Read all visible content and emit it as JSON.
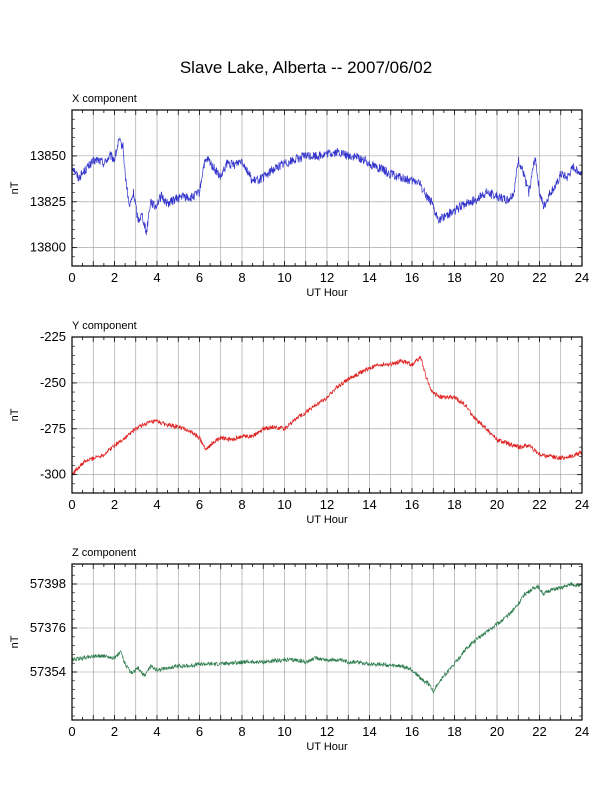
{
  "page": {
    "title": "Slave Lake, Alberta -- 2007/06/02"
  },
  "chart_data": [
    {
      "type": "line",
      "title": "X component",
      "xlabel": "UT Hour",
      "ylabel": "nT",
      "xlim": [
        0,
        24
      ],
      "ylim": [
        13790,
        13875
      ],
      "xticks": [
        0,
        2,
        4,
        6,
        8,
        10,
        12,
        14,
        16,
        18,
        20,
        22,
        24
      ],
      "xtick_labels": [
        "0",
        "2",
        "4",
        "6",
        "8",
        "10",
        "12",
        "14",
        "16",
        "18",
        "20",
        "22",
        "24"
      ],
      "yticks": [
        13800,
        13825,
        13850
      ],
      "ytick_labels": [
        "13800",
        "13825",
        "13850"
      ],
      "grid": true,
      "color": "#3333cc",
      "noise": 2.5,
      "series": [
        {
          "x": [
            0,
            0.3,
            0.6,
            0.9,
            1.2,
            1.5,
            1.8,
            2.0,
            2.2,
            2.4,
            2.5,
            2.7,
            2.9,
            3.1,
            3.3,
            3.5,
            3.7,
            3.9,
            4.2,
            4.5,
            4.8,
            5.2,
            5.6,
            6.0,
            6.2,
            6.4,
            6.7,
            7.0,
            7.3,
            7.6,
            8.0,
            8.5,
            9.0,
            9.5,
            10.0,
            10.5,
            11.0,
            11.5,
            12.0,
            12.5,
            13.0,
            13.5,
            14.0,
            14.5,
            15.0,
            15.5,
            16.0,
            16.3,
            16.6,
            16.9,
            17.1,
            17.3,
            17.6,
            18.0,
            18.5,
            19.0,
            19.5,
            20.0,
            20.5,
            20.8,
            21.0,
            21.2,
            21.5,
            21.8,
            22.0,
            22.2,
            22.5,
            22.8,
            23.0,
            23.3,
            23.6,
            24.0
          ],
          "y": [
            13845,
            13838,
            13842,
            13846,
            13848,
            13846,
            13850,
            13848,
            13858,
            13855,
            13840,
            13822,
            13830,
            13815,
            13818,
            13808,
            13826,
            13822,
            13828,
            13824,
            13826,
            13828,
            13827,
            13830,
            13845,
            13848,
            13843,
            13838,
            13846,
            13845,
            13848,
            13836,
            13838,
            13843,
            13846,
            13848,
            13850,
            13850,
            13851,
            13852,
            13850,
            13849,
            13846,
            13843,
            13840,
            13838,
            13836,
            13836,
            13830,
            13825,
            13818,
            13815,
            13818,
            13820,
            13824,
            13826,
            13830,
            13828,
            13826,
            13830,
            13848,
            13842,
            13830,
            13850,
            13830,
            13822,
            13830,
            13834,
            13840,
            13838,
            13844,
            13840
          ]
        }
      ]
    },
    {
      "type": "line",
      "title": "Y component",
      "xlabel": "UT Hour",
      "ylabel": "nT",
      "xlim": [
        0,
        24
      ],
      "ylim": [
        -310,
        -225
      ],
      "xticks": [
        0,
        2,
        4,
        6,
        8,
        10,
        12,
        14,
        16,
        18,
        20,
        22,
        24
      ],
      "xtick_labels": [
        "0",
        "2",
        "4",
        "6",
        "8",
        "10",
        "12",
        "14",
        "16",
        "18",
        "20",
        "22",
        "24"
      ],
      "yticks": [
        -300,
        -275,
        -250,
        -225
      ],
      "ytick_labels": [
        "-300",
        "-275",
        "-250",
        "-225"
      ],
      "grid": true,
      "color": "#e02020",
      "noise": 1.2,
      "series": [
        {
          "x": [
            0,
            0.3,
            0.6,
            1.0,
            1.5,
            2.0,
            2.5,
            3.0,
            3.5,
            4.0,
            4.5,
            5.0,
            5.5,
            6.0,
            6.3,
            6.6,
            7.0,
            7.5,
            8.0,
            8.5,
            9.0,
            9.5,
            10.0,
            10.5,
            11.0,
            11.5,
            12.0,
            12.5,
            13.0,
            13.5,
            14.0,
            14.5,
            15.0,
            15.5,
            16.0,
            16.4,
            16.7,
            17.0,
            17.5,
            18.0,
            18.5,
            19.0,
            19.5,
            20.0,
            20.5,
            21.0,
            21.5,
            22.0,
            22.5,
            23.0,
            23.5,
            24.0
          ],
          "y": [
            -300,
            -296,
            -293,
            -291,
            -289,
            -284,
            -280,
            -275,
            -272,
            -271,
            -273,
            -274,
            -276,
            -280,
            -286,
            -283,
            -280,
            -281,
            -279,
            -279,
            -275,
            -274,
            -275,
            -270,
            -266,
            -262,
            -258,
            -252,
            -248,
            -245,
            -242,
            -240,
            -240,
            -238,
            -240,
            -236,
            -248,
            -256,
            -258,
            -258,
            -262,
            -270,
            -275,
            -281,
            -283,
            -285,
            -284,
            -289,
            -290,
            -291,
            -290,
            -288
          ]
        }
      ]
    },
    {
      "type": "line",
      "title": "Z component",
      "xlabel": "UT Hour",
      "ylabel": "nT",
      "xlim": [
        0,
        24
      ],
      "ylim": [
        57330,
        57408
      ],
      "xticks": [
        0,
        2,
        4,
        6,
        8,
        10,
        12,
        14,
        16,
        18,
        20,
        22,
        24
      ],
      "xtick_labels": [
        "0",
        "2",
        "4",
        "6",
        "8",
        "10",
        "12",
        "14",
        "16",
        "18",
        "20",
        "22",
        "24"
      ],
      "yticks": [
        57354,
        57376,
        57398
      ],
      "ytick_labels": [
        "57354",
        "57376",
        "57398"
      ],
      "grid": true,
      "color": "#2e7d4f",
      "noise": 1.0,
      "series": [
        {
          "x": [
            0,
            0.5,
            1.0,
            1.5,
            2.0,
            2.3,
            2.5,
            2.8,
            3.1,
            3.4,
            3.7,
            4.0,
            4.5,
            5.0,
            5.5,
            6.0,
            7.0,
            8.0,
            9.0,
            10.0,
            10.5,
            11.0,
            11.5,
            12.0,
            12.5,
            13.0,
            13.5,
            14.0,
            14.5,
            15.0,
            15.5,
            16.0,
            16.5,
            16.8,
            17.0,
            17.2,
            17.5,
            18.0,
            18.5,
            19.0,
            19.5,
            20.0,
            20.5,
            21.0,
            21.3,
            21.6,
            21.9,
            22.2,
            22.5,
            23.0,
            23.5,
            24.0
          ],
          "y": [
            57360,
            57361,
            57362,
            57362,
            57361,
            57364,
            57358,
            57353,
            57356,
            57352,
            57357,
            57355,
            57356,
            57357,
            57357,
            57358,
            57358,
            57359,
            57359,
            57360,
            57360,
            57359,
            57361,
            57360,
            57360,
            57359,
            57359,
            57358,
            57358,
            57357,
            57357,
            57355,
            57350,
            57348,
            57344,
            57348,
            57352,
            57358,
            57365,
            57370,
            57374,
            57378,
            57382,
            57388,
            57393,
            57395,
            57397,
            57393,
            57395,
            57396,
            57398,
            57397
          ]
        }
      ]
    }
  ]
}
